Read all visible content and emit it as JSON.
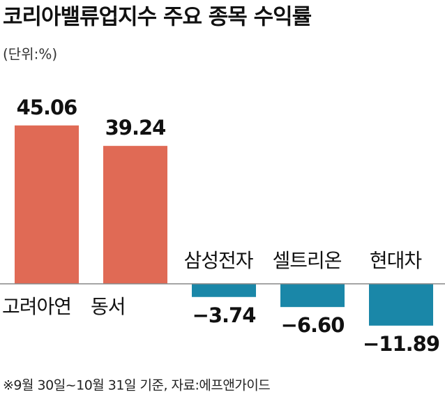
{
  "chart_data": {
    "type": "bar",
    "title": "코리아밸류업지수 주요 종목 수익률",
    "subtitle": "(단위:%)",
    "categories": [
      "고려아연",
      "동서",
      "삼성전자",
      "셀트리온",
      "현대차"
    ],
    "values": [
      45.06,
      39.24,
      -3.74,
      -6.6,
      -11.89
    ],
    "value_labels": [
      "45.06",
      "39.24",
      "−3.74",
      "−6.60",
      "−11.89"
    ],
    "positive_color": "#e06a55",
    "negative_color": "#1a87a8",
    "ylim": [
      -15,
      48
    ],
    "note": "※9월 30일~10월 31일 기준,  자료:에프앤가이드"
  }
}
